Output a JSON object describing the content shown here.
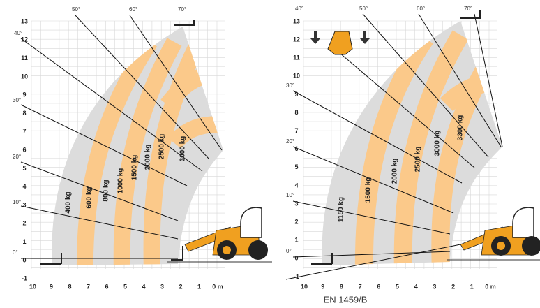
{
  "left": {
    "y_ticks": [
      "13",
      "12",
      "11",
      "10",
      "9",
      "8",
      "7",
      "6",
      "5",
      "4",
      "3",
      "2",
      "1",
      "0",
      "-1"
    ],
    "x_ticks": [
      "10",
      "9",
      "8",
      "7",
      "6",
      "5",
      "4",
      "3",
      "2",
      "1",
      "0 m"
    ],
    "angles": [
      "0°",
      "10°",
      "20°",
      "30°",
      "40°",
      "50°",
      "60°",
      "70°"
    ],
    "loads": [
      "400 kg",
      "600 kg",
      "800 kg",
      "1000 kg",
      "1500 kg",
      "2000 kg",
      "2500 kg",
      "3000 kg"
    ]
  },
  "right": {
    "y_ticks": [
      "13",
      "12",
      "11",
      "10",
      "9",
      "8",
      "7",
      "6",
      "5",
      "4",
      "3",
      "2",
      "1",
      "0",
      "-1"
    ],
    "x_ticks": [
      "10",
      "9",
      "8",
      "7",
      "6",
      "5",
      "4",
      "3",
      "2",
      "1",
      "0 m"
    ],
    "angles": [
      "0°",
      "10°",
      "20°",
      "30°",
      "40°",
      "50°",
      "60°",
      "70°"
    ],
    "loads": [
      "1150 kg",
      "1500 kg",
      "2000 kg",
      "2500 kg",
      "3000 kg",
      "3300 kg"
    ]
  },
  "caption": "EN 1459/B"
}
